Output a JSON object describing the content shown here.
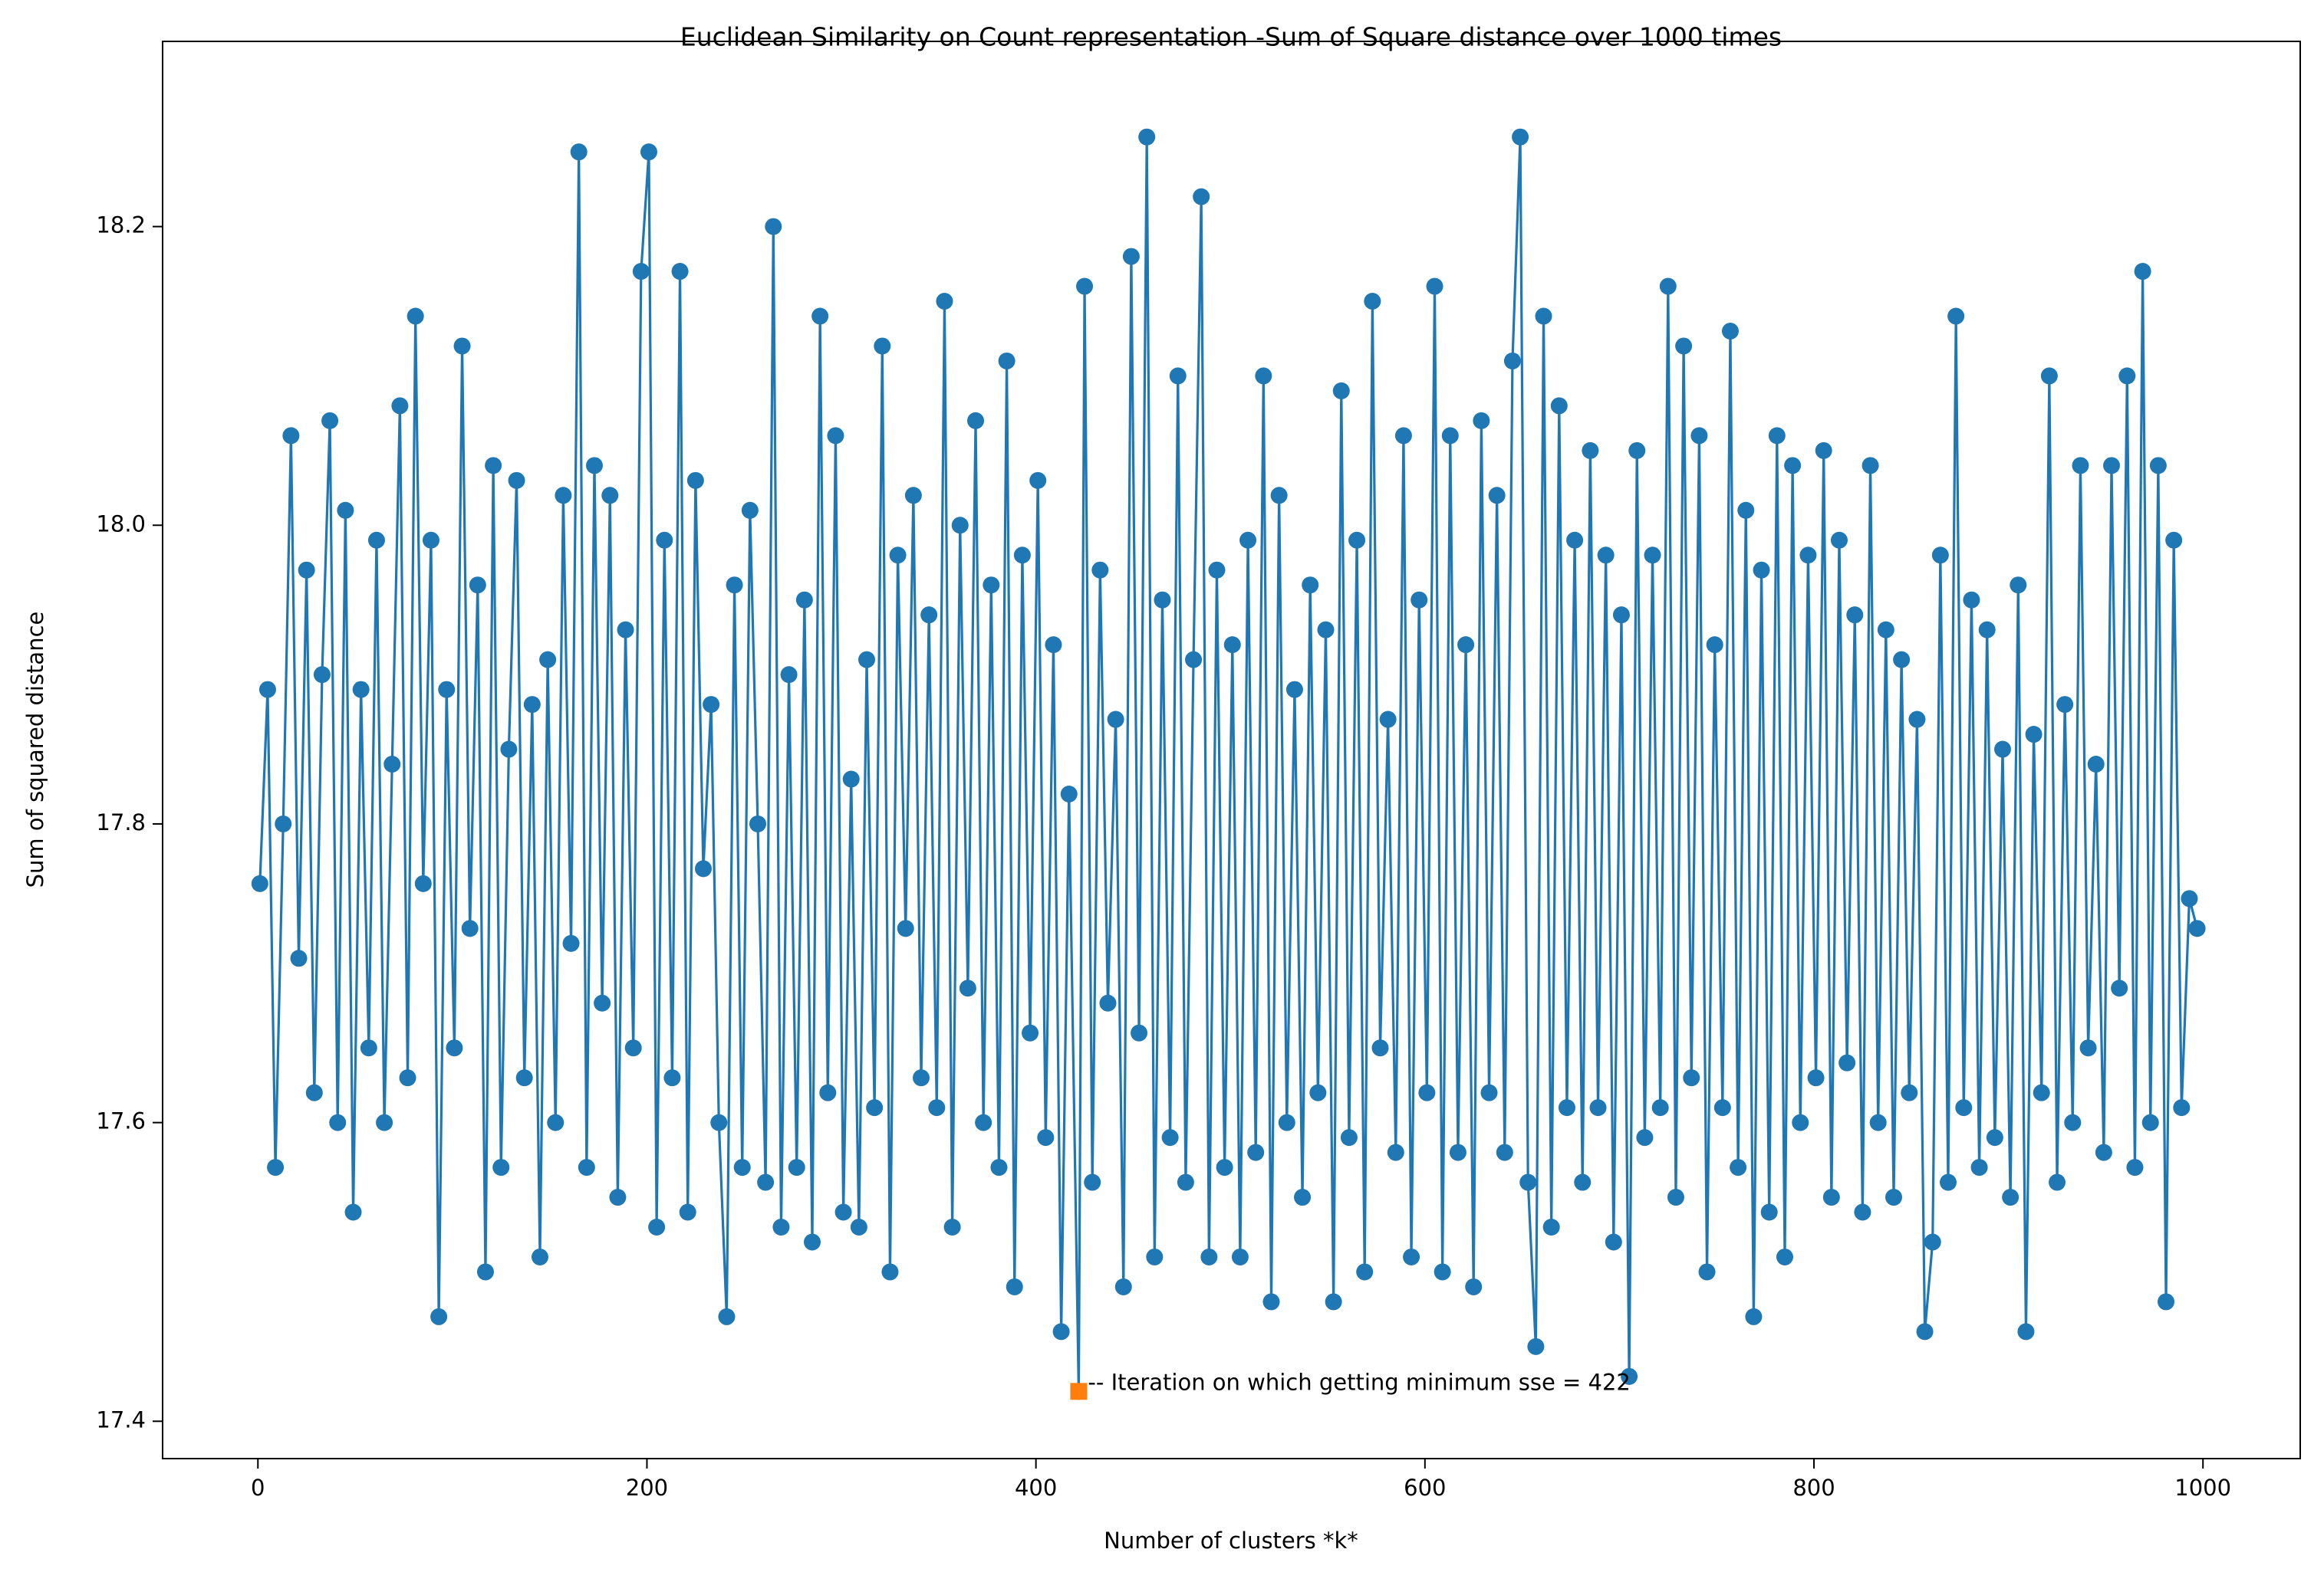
{
  "chart_data": {
    "type": "line",
    "title": "Euclidean Similarity on Count representation -Sum of Square distance over 1000 times",
    "xlabel": "Number of clusters *k*",
    "ylabel": "Sum of squared distance",
    "xlim": [
      -49,
      1050
    ],
    "ylim": [
      17.375,
      18.324
    ],
    "xticks": [
      0,
      200,
      400,
      600,
      800,
      1000
    ],
    "yticks": [
      17.4,
      17.6,
      17.8,
      {
        "value": 18,
        "label": "18.0"
      },
      18.2
    ],
    "grid": false,
    "x": [
      1,
      5,
      9,
      13,
      17,
      21,
      25,
      29,
      33,
      37,
      41,
      45,
      49,
      53,
      57,
      61,
      65,
      69,
      73,
      77,
      81,
      85,
      89,
      93,
      97,
      101,
      105,
      109,
      113,
      117,
      121,
      125,
      129,
      133,
      137,
      141,
      145,
      149,
      153,
      157,
      161,
      165,
      169,
      173,
      177,
      181,
      185,
      189,
      193,
      197,
      201,
      205,
      209,
      213,
      217,
      221,
      225,
      229,
      233,
      237,
      241,
      245,
      249,
      253,
      257,
      261,
      265,
      269,
      273,
      277,
      281,
      285,
      289,
      293,
      297,
      301,
      305,
      309,
      313,
      317,
      321,
      325,
      329,
      333,
      337,
      341,
      345,
      349,
      353,
      357,
      361,
      365,
      369,
      373,
      377,
      381,
      385,
      389,
      393,
      397,
      401,
      405,
      409,
      413,
      417,
      422,
      425,
      429,
      433,
      437,
      441,
      445,
      449,
      453,
      457,
      461,
      465,
      469,
      473,
      477,
      481,
      485,
      489,
      493,
      497,
      501,
      505,
      509,
      513,
      517,
      521,
      525,
      529,
      533,
      537,
      541,
      545,
      549,
      553,
      557,
      561,
      565,
      569,
      573,
      577,
      581,
      585,
      589,
      593,
      597,
      601,
      605,
      609,
      613,
      617,
      621,
      625,
      629,
      633,
      637,
      641,
      645,
      649,
      653,
      657,
      661,
      665,
      669,
      673,
      677,
      681,
      685,
      689,
      693,
      697,
      701,
      705,
      709,
      713,
      717,
      721,
      725,
      729,
      733,
      737,
      741,
      745,
      749,
      753,
      757,
      761,
      765,
      769,
      773,
      777,
      781,
      785,
      789,
      793,
      797,
      801,
      805,
      809,
      813,
      817,
      821,
      825,
      829,
      833,
      837,
      841,
      845,
      849,
      853,
      857,
      861,
      865,
      869,
      873,
      877,
      881,
      885,
      889,
      893,
      897,
      901,
      905,
      909,
      913,
      917,
      921,
      925,
      929,
      933,
      937,
      941,
      945,
      949,
      953,
      957,
      961,
      965,
      969,
      973,
      977,
      981,
      985,
      989,
      993,
      997
    ],
    "series": [
      {
        "color": "#1f77b4",
        "values": [
          17.76,
          17.89,
          17.57,
          17.8,
          18.06,
          17.71,
          17.97,
          17.62,
          17.9,
          18.07,
          17.6,
          18.01,
          17.54,
          17.89,
          17.65,
          17.99,
          17.6,
          17.84,
          18.08,
          17.63,
          18.14,
          17.76,
          17.99,
          17.47,
          17.89,
          17.65,
          18.12,
          17.73,
          17.96,
          17.5,
          18.04,
          17.57,
          17.85,
          18.03,
          17.63,
          17.88,
          17.51,
          17.91,
          17.6,
          18.02,
          17.72,
          18.25,
          17.57,
          18.04,
          17.68,
          18.02,
          17.55,
          17.93,
          17.65,
          18.17,
          18.25,
          17.53,
          17.99,
          17.63,
          18.17,
          17.54,
          18.03,
          17.77,
          17.88,
          17.6,
          17.47,
          17.96,
          17.57,
          18.01,
          17.8,
          17.56,
          18.2,
          17.53,
          17.9,
          17.57,
          17.95,
          17.52,
          18.14,
          17.62,
          18.06,
          17.54,
          17.83,
          17.53,
          17.91,
          17.61,
          18.12,
          17.5,
          17.98,
          17.73,
          18.02,
          17.63,
          17.94,
          17.61,
          18.15,
          17.53,
          18.0,
          17.69,
          18.07,
          17.6,
          17.96,
          17.57,
          18.11,
          17.49,
          17.98,
          17.66,
          18.03,
          17.59,
          17.92,
          17.46,
          17.82,
          17.42,
          18.16,
          17.56,
          17.97,
          17.68,
          17.87,
          17.49,
          18.18,
          17.66,
          18.26,
          17.51,
          17.95,
          17.59,
          18.1,
          17.56,
          17.91,
          18.22,
          17.51,
          17.97,
          17.57,
          17.92,
          17.51,
          17.99,
          17.58,
          18.1,
          17.48,
          18.02,
          17.6,
          17.89,
          17.55,
          17.96,
          17.62,
          17.93,
          17.48,
          18.09,
          17.59,
          17.99,
          17.5,
          18.15,
          17.65,
          17.87,
          17.58,
          18.06,
          17.51,
          17.95,
          17.62,
          18.16,
          17.5,
          18.06,
          17.58,
          17.92,
          17.49,
          18.07,
          17.62,
          18.02,
          17.58,
          18.11,
          18.26,
          17.56,
          17.45,
          18.14,
          17.53,
          18.08,
          17.61,
          17.99,
          17.56,
          18.05,
          17.61,
          17.98,
          17.52,
          17.94,
          17.43,
          18.05,
          17.59,
          17.98,
          17.61,
          18.16,
          17.55,
          18.12,
          17.63,
          18.06,
          17.5,
          17.92,
          17.61,
          18.13,
          17.57,
          18.01,
          17.47,
          17.97,
          17.54,
          18.06,
          17.51,
          18.04,
          17.6,
          17.98,
          17.63,
          18.05,
          17.55,
          17.99,
          17.64,
          17.94,
          17.54,
          18.04,
          17.6,
          17.93,
          17.55,
          17.91,
          17.62,
          17.87,
          17.46,
          17.52,
          17.98,
          17.56,
          18.14,
          17.61,
          17.95,
          17.57,
          17.93,
          17.59,
          17.85,
          17.55,
          17.96,
          17.46,
          17.86,
          17.62,
          18.1,
          17.56,
          17.88,
          17.6,
          18.04,
          17.65,
          17.84,
          17.58,
          18.04,
          17.69,
          18.1,
          17.57,
          18.17,
          17.6,
          18.04,
          17.48,
          17.99,
          17.61,
          17.75,
          17.73
        ]
      }
    ],
    "annotation": {
      "text": "-- Iteration on which getting minimum sse = 422",
      "x": 422,
      "y": 17.42,
      "color": "#ff7f0e"
    }
  }
}
